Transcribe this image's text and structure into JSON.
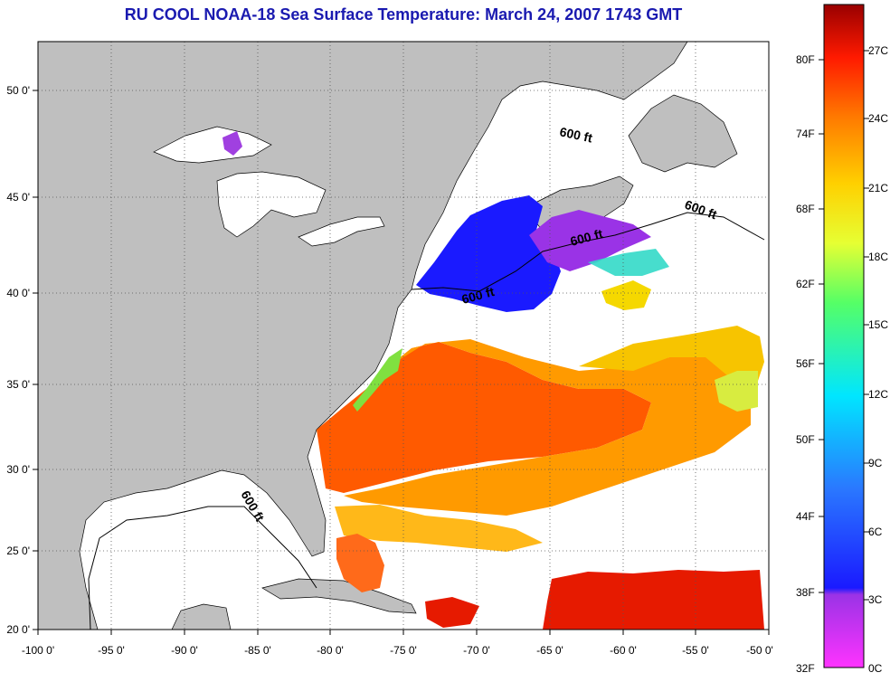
{
  "title": "RU COOL  NOAA-18  Sea Surface Temperature:  March 24, 2007 1743 GMT",
  "map": {
    "lon_ticks": [
      "-100 0'",
      "-95 0'",
      "-90 0'",
      "-85 0'",
      "-80 0'",
      "-75 0'",
      "-70 0'",
      "-65 0'",
      "-60 0'",
      "-55 0'",
      "-50 0'"
    ],
    "lat_ticks": [
      "50 0'",
      "45 0'",
      "40 0'",
      "35 0'",
      "30 0'",
      "25 0'",
      "20 0'"
    ],
    "contour_label": "600 ft",
    "colors": {
      "land": "#bfbfbf",
      "ocean_nodata": "#ffffff"
    }
  },
  "colorbar": {
    "fahrenheit": [
      "80F",
      "74F",
      "68F",
      "62F",
      "56F",
      "50F",
      "44F",
      "38F",
      "32F"
    ],
    "celsius": [
      "27C",
      "24C",
      "21C",
      "18C",
      "15C",
      "12C",
      "9C",
      "6C",
      "3C",
      "0C"
    ]
  }
}
